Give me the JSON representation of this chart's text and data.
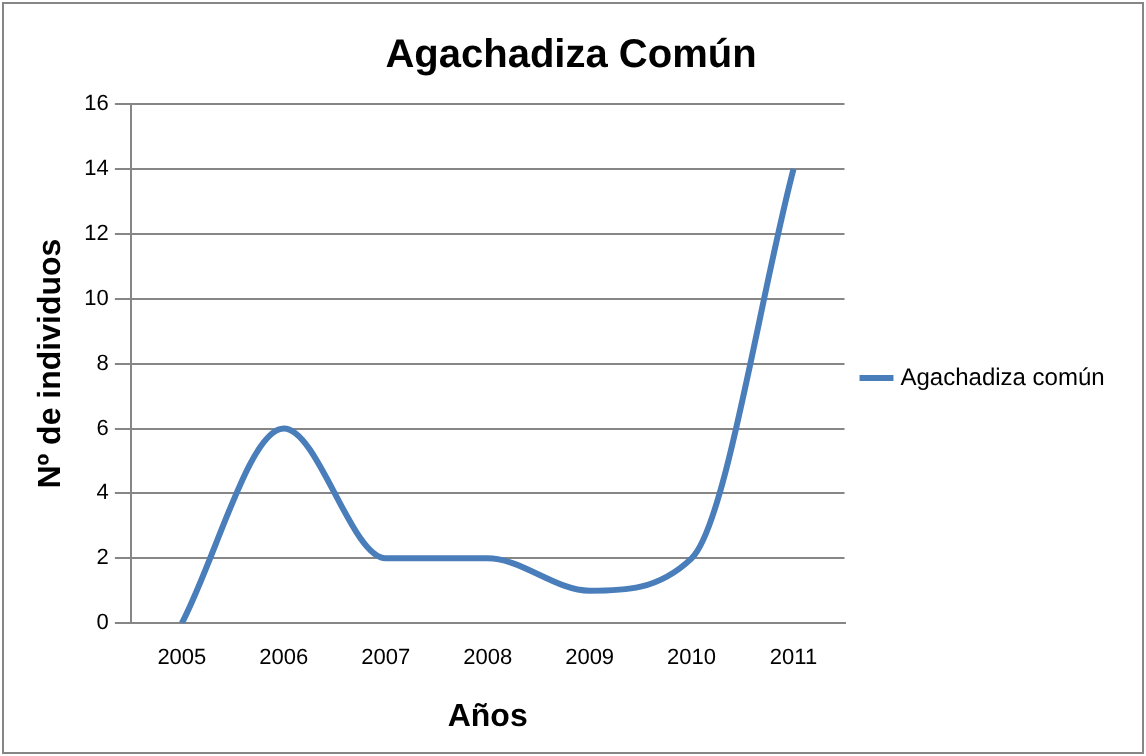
{
  "chart_data": {
    "type": "line",
    "title": "Agachadiza Común",
    "xlabel": "Años",
    "ylabel": "Nº de individuos",
    "categories": [
      "2005",
      "2006",
      "2007",
      "2008",
      "2009",
      "2010",
      "2011"
    ],
    "series": [
      {
        "name": "Agachadiza común",
        "color": "#4a7ebb",
        "values": [
          0,
          6,
          2,
          2,
          1,
          2,
          14
        ]
      }
    ],
    "ylim": [
      0,
      16
    ],
    "yticks": [
      0,
      2,
      4,
      6,
      8,
      10,
      12,
      14,
      16
    ],
    "grid": "y",
    "legend": "right",
    "marker": "none",
    "line_style": "solid"
  }
}
